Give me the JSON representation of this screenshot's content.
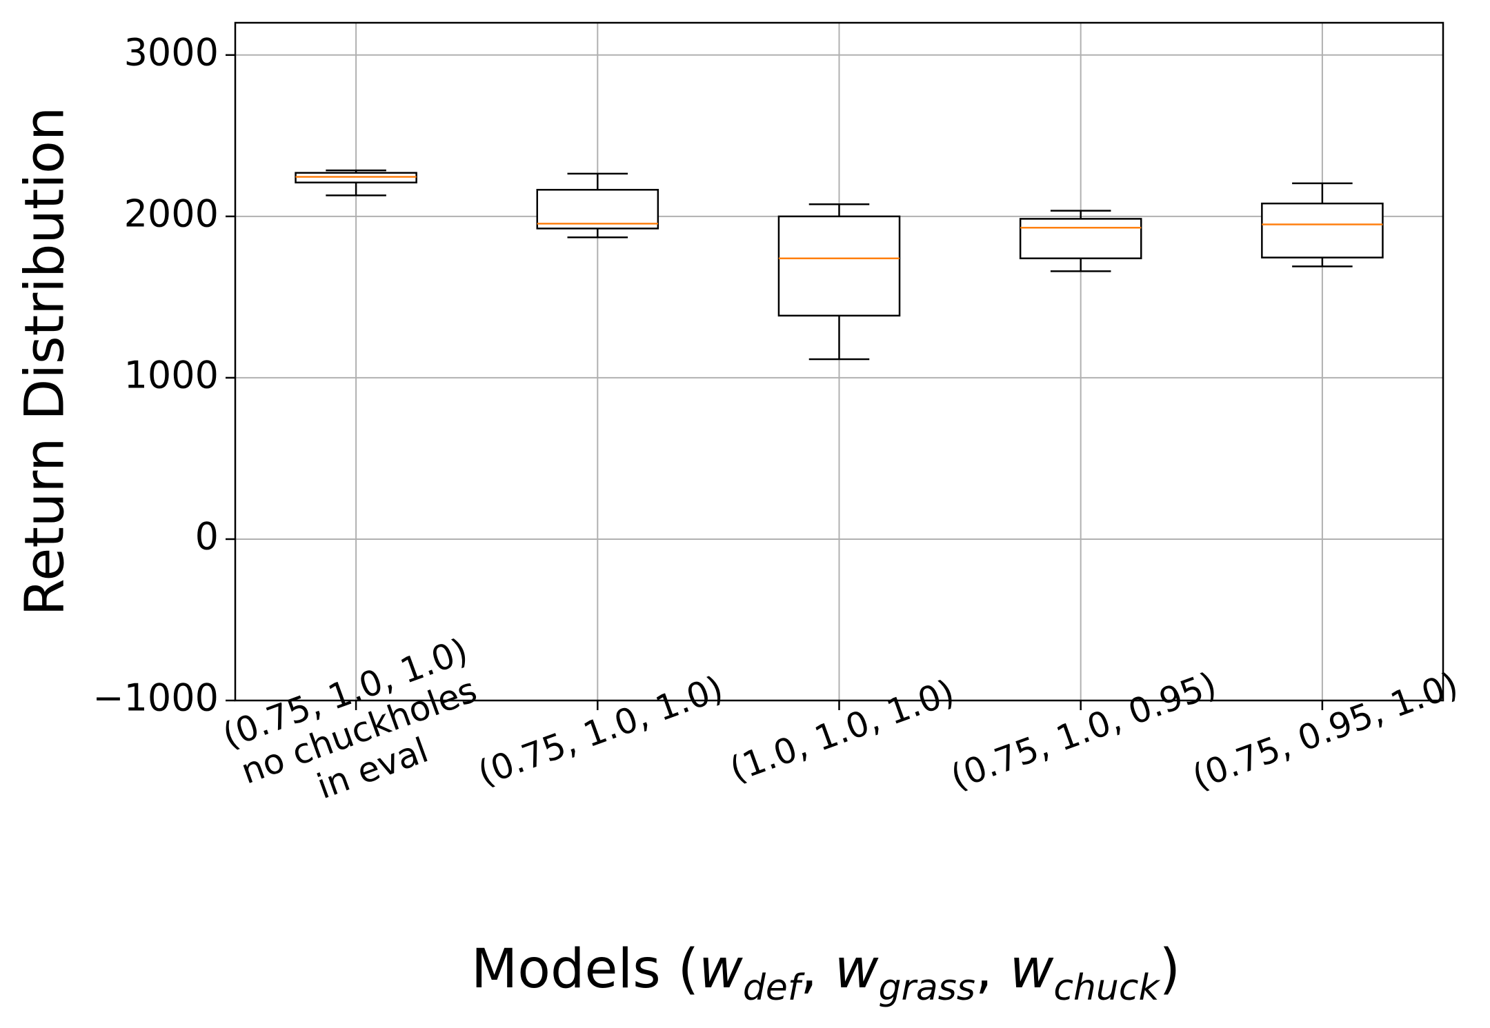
{
  "chart_data": {
    "type": "box",
    "xlabel": {
      "prefix": "Models (",
      "suffix": ")",
      "separator": ", ",
      "vars": [
        {
          "base": "w",
          "sub": "def"
        },
        {
          "base": "w",
          "sub": "grass"
        },
        {
          "base": "w",
          "sub": "chuck"
        }
      ]
    },
    "ylabel": "Return Distribution",
    "ylim": [
      -1000,
      3200
    ],
    "yticks": [
      {
        "value": -1000,
        "label": "−1000"
      },
      {
        "value": 0,
        "label": "0"
      },
      {
        "value": 1000,
        "label": "1000"
      },
      {
        "value": 2000,
        "label": "2000"
      },
      {
        "value": 3000,
        "label": "3000"
      }
    ],
    "grid": true,
    "categories": [
      "(0.75, 1.0, 1.0)\nno chuckholes\nin eval",
      "(0.75, 1.0, 1.0)",
      "(1.0, 1.0, 1.0)",
      "(0.75, 1.0, 0.95)",
      "(0.75, 0.95, 1.0)"
    ],
    "boxes": [
      {
        "whisker_low": 2130,
        "q1": 2210,
        "median": 2245,
        "q3": 2270,
        "whisker_high": 2285
      },
      {
        "whisker_low": 1870,
        "q1": 1925,
        "median": 1955,
        "q3": 2165,
        "whisker_high": 2265
      },
      {
        "whisker_low": 1115,
        "q1": 1385,
        "median": 1740,
        "q3": 2000,
        "whisker_high": 2075
      },
      {
        "whisker_low": 1660,
        "q1": 1740,
        "median": 1930,
        "q3": 1985,
        "whisker_high": 2035
      },
      {
        "whisker_low": 1690,
        "q1": 1745,
        "median": 1950,
        "q3": 2080,
        "whisker_high": 2205
      }
    ],
    "colors": {
      "box": "#000000",
      "median": "#ff7f0e",
      "grid": "#b0b0b0"
    }
  }
}
